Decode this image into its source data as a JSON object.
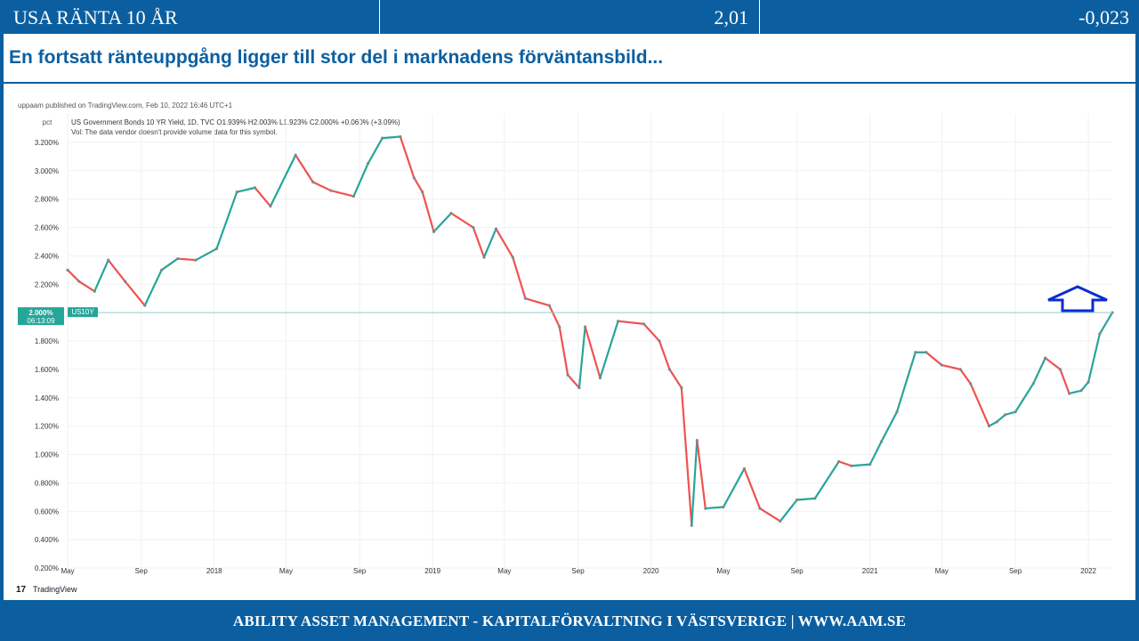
{
  "header": {
    "name": "USA RÄNTA 10 ÅR",
    "value": "2,01",
    "change": "-0,023"
  },
  "subtitle": "En fortsatt ränteuppgång ligger till stor del i marknadens förväntansbild...",
  "footer": "ABILITY ASSET MANAGEMENT -  KAPITALFÖRVALTNING I VÄSTSVERIGE   |   WWW.AAM.SE",
  "colors": {
    "brand": "#0b5fa0",
    "up": "#26a69a",
    "down": "#ef5350",
    "arrow": "#0a2ecf"
  },
  "chart_data": {
    "type": "line",
    "published": "uppaam published on TradingView.com, Feb 10, 2022 16:46 UTC+1",
    "legend_line1": "US Government Bonds 10 YR Yield, 1D, TVC  O1.939%  H2.003%  L1.923%  C2.000%  +0.060% (+3.09%)",
    "legend_line2": "Vol: The data vendor doesn't provide volume data for this symbol.",
    "unit_label": "pct",
    "price_label": "2.000%",
    "countdown_label": "06:13:09",
    "symbol_label": "US10Y",
    "current_value": 2.0,
    "watermark": "TradingView",
    "ylim": [
      0.2,
      3.4
    ],
    "y_ticks": [
      0.2,
      0.4,
      0.6,
      0.8,
      1.0,
      1.2,
      1.4,
      1.6,
      1.8,
      2.0,
      2.2,
      2.4,
      2.6,
      2.8,
      3.0,
      3.2
    ],
    "y_tick_labels": [
      "0.200%",
      "0.400%",
      "0.600%",
      "0.800%",
      "1.000%",
      "1.200%",
      "1.400%",
      "1.600%",
      "1.800%",
      "2.000%",
      "2.200%",
      "2.400%",
      "2.600%",
      "2.800%",
      "3.000%",
      "3.200%"
    ],
    "xlim": [
      "2017-05-01",
      "2022-02-10"
    ],
    "x_ticks": [
      {
        "date": "2017-05-01",
        "label": "May"
      },
      {
        "date": "2017-09-01",
        "label": "Sep"
      },
      {
        "date": "2018-01-01",
        "label": "2018"
      },
      {
        "date": "2018-05-01",
        "label": "May"
      },
      {
        "date": "2018-09-01",
        "label": "Sep"
      },
      {
        "date": "2019-01-01",
        "label": "2019"
      },
      {
        "date": "2019-05-01",
        "label": "May"
      },
      {
        "date": "2019-09-01",
        "label": "Sep"
      },
      {
        "date": "2020-01-01",
        "label": "2020"
      },
      {
        "date": "2020-05-01",
        "label": "May"
      },
      {
        "date": "2020-09-01",
        "label": "Sep"
      },
      {
        "date": "2021-01-01",
        "label": "2021"
      },
      {
        "date": "2021-05-01",
        "label": "May"
      },
      {
        "date": "2021-09-01",
        "label": "Sep"
      },
      {
        "date": "2022-01-01",
        "label": "2022"
      }
    ],
    "series": [
      {
        "x": [
          "2017-05-01",
          "2017-05-20",
          "2017-06-15",
          "2017-07-08",
          "2017-08-05",
          "2017-09-07",
          "2017-10-05",
          "2017-11-01",
          "2017-12-01",
          "2018-01-05",
          "2018-02-08",
          "2018-03-10",
          "2018-04-05",
          "2018-05-17",
          "2018-06-15",
          "2018-07-15",
          "2018-08-22",
          "2018-09-15",
          "2018-10-09",
          "2018-11-08",
          "2018-12-01",
          "2018-12-15",
          "2019-01-03",
          "2019-02-01",
          "2019-03-10",
          "2019-03-28",
          "2019-04-17",
          "2019-05-15",
          "2019-06-05",
          "2019-07-15",
          "2019-08-01",
          "2019-08-15",
          "2019-09-03",
          "2019-09-13",
          "2019-10-08",
          "2019-11-07",
          "2019-12-20",
          "2020-01-15",
          "2020-02-01",
          "2020-02-21",
          "2020-03-09",
          "2020-03-18",
          "2020-04-01",
          "2020-05-01",
          "2020-06-05",
          "2020-07-01",
          "2020-08-04",
          "2020-09-01",
          "2020-10-01",
          "2020-11-10",
          "2020-12-01",
          "2021-01-01",
          "2021-01-20",
          "2021-02-15",
          "2021-03-18",
          "2021-04-05",
          "2021-05-01",
          "2021-06-01",
          "2021-06-18",
          "2021-07-19",
          "2021-08-01",
          "2021-08-15",
          "2021-09-01",
          "2021-10-01",
          "2021-10-21",
          "2021-11-15",
          "2021-11-30",
          "2021-12-20",
          "2022-01-01",
          "2022-01-20",
          "2022-02-10"
        ],
        "y": [
          2.3,
          2.22,
          2.15,
          2.37,
          2.22,
          2.05,
          2.3,
          2.38,
          2.37,
          2.45,
          2.85,
          2.88,
          2.75,
          3.11,
          2.92,
          2.86,
          2.82,
          3.05,
          3.23,
          3.24,
          2.95,
          2.85,
          2.57,
          2.7,
          2.6,
          2.39,
          2.59,
          2.39,
          2.1,
          2.05,
          1.9,
          1.56,
          1.47,
          1.9,
          1.54,
          1.94,
          1.92,
          1.8,
          1.6,
          1.47,
          0.5,
          1.1,
          0.62,
          0.63,
          0.9,
          0.62,
          0.53,
          0.68,
          0.69,
          0.95,
          0.92,
          0.93,
          1.09,
          1.3,
          1.72,
          1.72,
          1.63,
          1.6,
          1.5,
          1.2,
          1.23,
          1.28,
          1.3,
          1.5,
          1.68,
          1.6,
          1.43,
          1.45,
          1.51,
          1.85,
          2.0
        ]
      }
    ]
  }
}
